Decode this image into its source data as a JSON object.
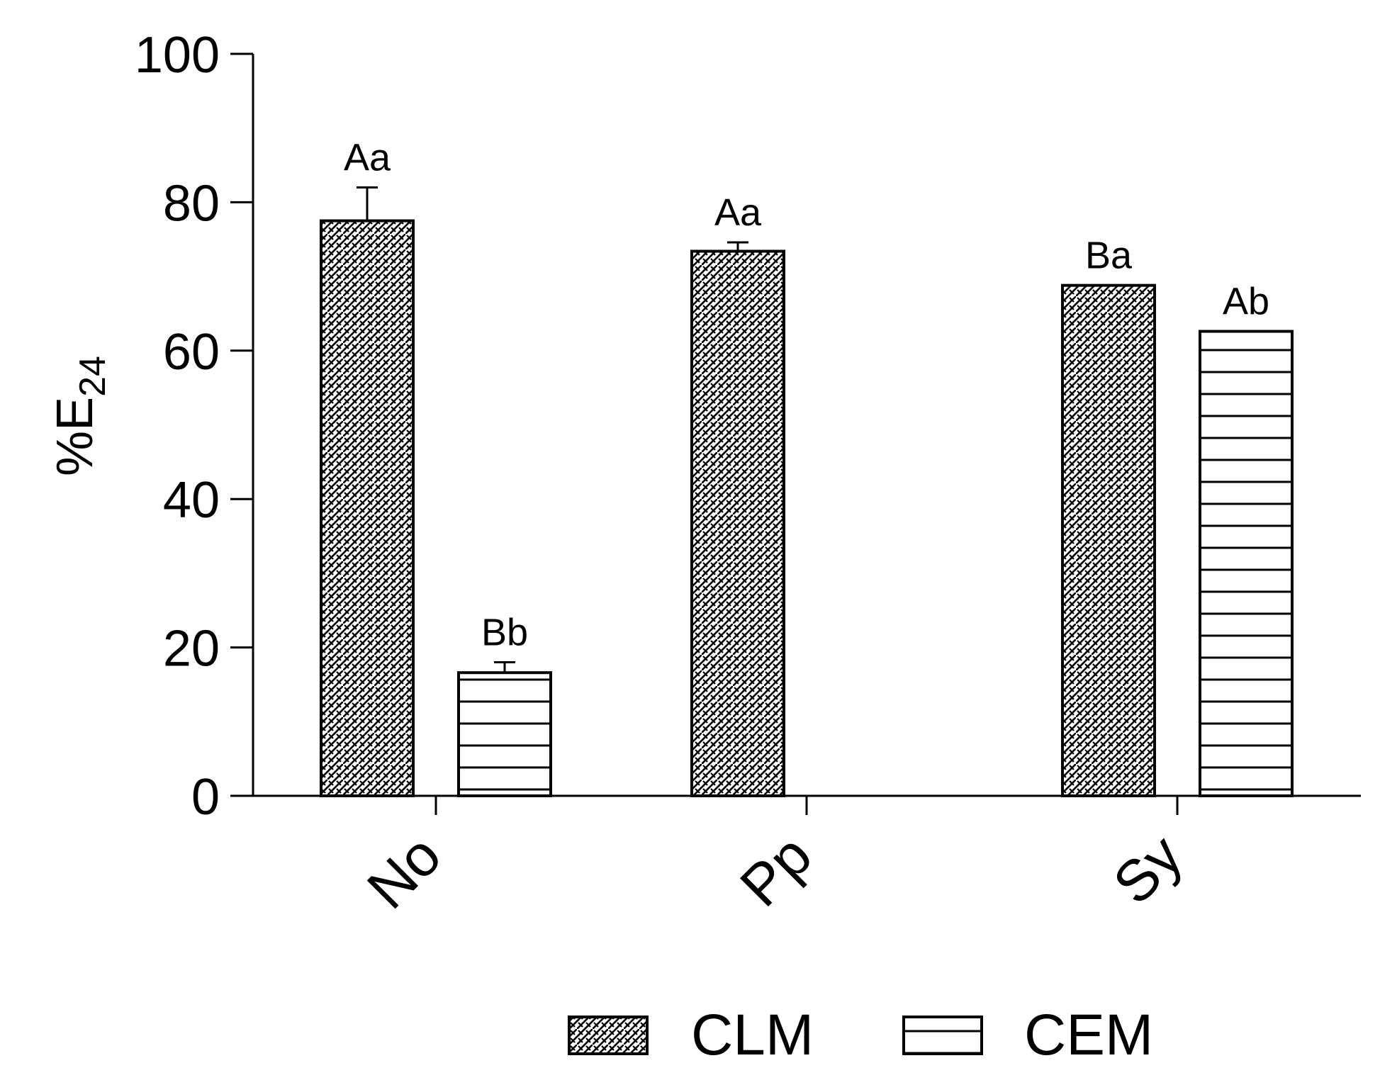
{
  "chart_data": {
    "type": "bar",
    "categories": [
      "No",
      "Pp",
      "Sy"
    ],
    "ylabel_main": "%E",
    "ylabel_sub": "24",
    "ylim": [
      0,
      100
    ],
    "yticks": [
      "0",
      "20",
      "40",
      "60",
      "80",
      "100"
    ],
    "series": [
      {
        "name": "CLM",
        "pattern": "crosshatch-brick",
        "values": [
          77.5,
          73.4,
          68.8
        ],
        "errors": [
          4.5,
          1.2,
          null
        ],
        "letters": [
          "Aa",
          "Aa",
          "Ba"
        ]
      },
      {
        "name": "CEM",
        "pattern": "horizontal-lines",
        "values": [
          16.6,
          null,
          62.6
        ],
        "errors": [
          1.4,
          null,
          null
        ],
        "letters": [
          "Bb",
          null,
          "Ab"
        ]
      }
    ],
    "grid": false,
    "legend_position": "bottom"
  }
}
